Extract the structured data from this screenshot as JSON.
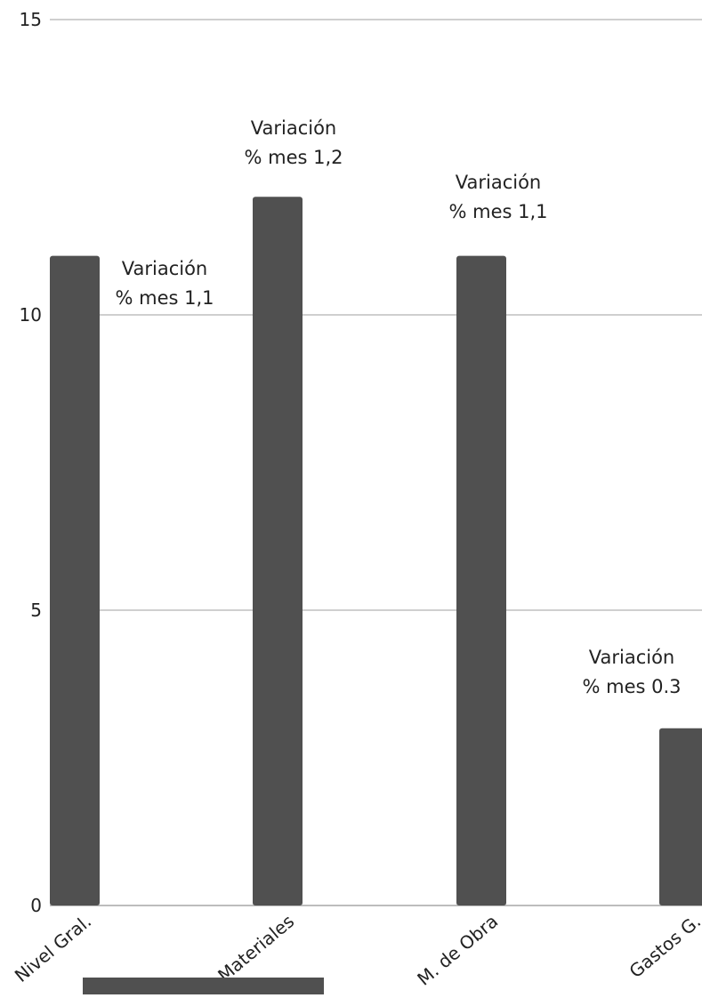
{
  "chart_data": {
    "type": "bar",
    "categories": [
      "Nivel Gral.",
      "Materiales",
      "M. de Obra",
      "Gastos G."
    ],
    "values": [
      11,
      12,
      11,
      3
    ],
    "ylim": [
      0,
      15
    ],
    "yticks": [
      0,
      5,
      10,
      15
    ],
    "grid": true,
    "bar_color": "#505050",
    "legend_swatch_color": "#505050",
    "annotations": [
      {
        "category": "Nivel Gral.",
        "lines": [
          "Variación",
          "% mes 1,1"
        ]
      },
      {
        "category": "Materiales",
        "lines": [
          "Variación",
          "% mes 1,2"
        ]
      },
      {
        "category": "M. de Obra",
        "lines": [
          "Variación",
          "% mes 1,1"
        ]
      },
      {
        "category": "Gastos G.",
        "lines": [
          "Variación",
          "% mes 0.3"
        ]
      }
    ]
  }
}
